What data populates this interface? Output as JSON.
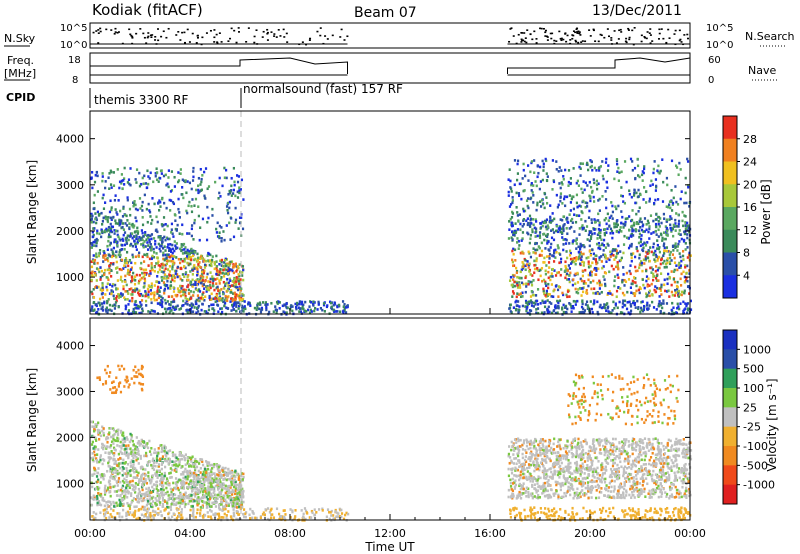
{
  "header": {
    "station": "Kodiak (fitACF)",
    "beam": "Beam 07",
    "date": "13/Dec/2011"
  },
  "side_labels": {
    "nsky": "N.Sky",
    "freq": "Freq.",
    "freq_unit": "[MHz]",
    "cpid": "CPID",
    "nsearch": "N.Search",
    "nave": "Nave"
  },
  "cpid_labels": {
    "first": "themis 3300 RF",
    "second": "normalsound (fast) 157 RF"
  },
  "colors": {
    "axis": "#000000",
    "power_scale": [
      "#1a2fe0",
      "#2a4fa8",
      "#3a8a5a",
      "#5aa860",
      "#a8c83a",
      "#f0c020",
      "#f08020",
      "#e83020"
    ],
    "velocity_scale": [
      "#e02020",
      "#f04a1a",
      "#f08a20",
      "#f0b030",
      "#c0c0c0",
      "#7ac840",
      "#2f9f5a",
      "#2a4fa8",
      "#1a30c0"
    ]
  },
  "chart_data": [
    {
      "type": "line",
      "name": "noise-panel",
      "ylabel_left": "N.Sky",
      "ylabel_right": "N.Search",
      "yticks_left": [
        "10^5",
        "10^0"
      ],
      "yticks_right": [
        "10^5",
        "10^0"
      ],
      "x_range_hours": [
        0,
        24
      ],
      "gap_hours": [
        10.3,
        16.7
      ]
    },
    {
      "type": "line",
      "name": "frequency-panel",
      "ylabel_left": "Freq. [MHz]",
      "ylabel_right": "Nave",
      "yticks_left": [
        "18",
        "8"
      ],
      "yticks_right": [
        "60",
        "0"
      ],
      "x_range_hours": [
        0,
        24
      ]
    },
    {
      "type": "heatmap",
      "name": "power-panel",
      "ylabel": "Slant Range [km]",
      "ylim": [
        200,
        4600
      ],
      "yticks": [
        "1000",
        "2000",
        "3000",
        "4000"
      ],
      "x_range_hours": [
        0,
        24
      ],
      "colorbar_label": "Power [dB]",
      "colorbar_ticks": [
        "28",
        "24",
        "20",
        "16",
        "12",
        "8",
        "4"
      ]
    },
    {
      "type": "heatmap",
      "name": "velocity-panel",
      "ylabel": "Slant Range [km]",
      "ylim": [
        200,
        4600
      ],
      "yticks": [
        "1000",
        "2000",
        "3000",
        "4000"
      ],
      "x_range_hours": [
        0,
        24
      ],
      "xlabel": "Time UT",
      "xticks": [
        "00:00",
        "04:00",
        "08:00",
        "12:00",
        "16:00",
        "20:00",
        "00:00"
      ],
      "colorbar_label": "Velocity [m s⁻¹]",
      "colorbar_ticks": [
        "1000",
        "500",
        "100",
        "25",
        "-25",
        "-100",
        "-500",
        "-1000"
      ]
    }
  ]
}
